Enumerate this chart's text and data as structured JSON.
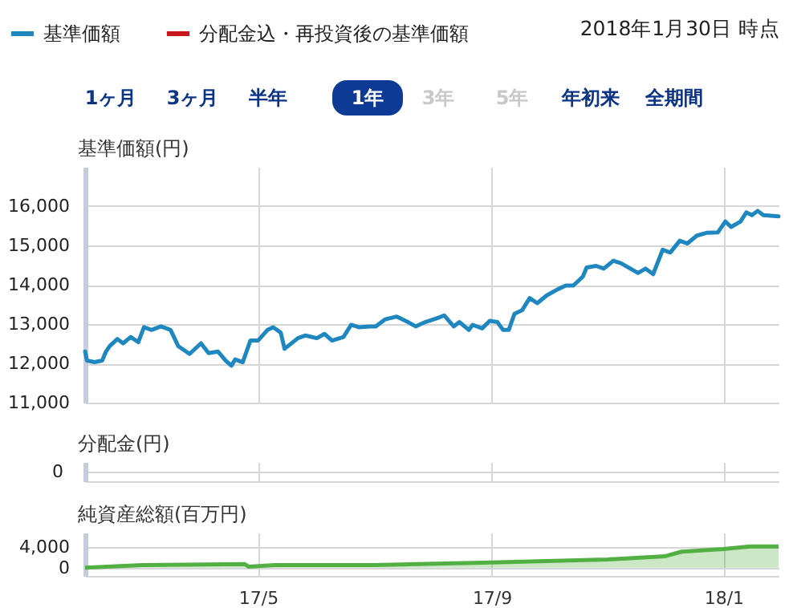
{
  "chart_data": [
    {
      "type": "line",
      "ylabel": "基準価額(円)",
      "legend": "top left",
      "grid": true,
      "tick_labels": "y",
      "annotations": [
        "2018年1月30日 時点",
        "1ヶ月",
        "3ヶ月",
        "半年",
        "1年",
        "3年",
        "5年",
        "年初来",
        "全期間"
      ],
      "xlim": [
        "2017-01-30",
        "2018-01-30"
      ],
      "xticks": [
        {
          "value": "2017-05-01",
          "label": null
        },
        {
          "value": "2017-09-01",
          "label": null
        },
        {
          "value": "2018-01-01",
          "label": null
        }
      ],
      "ylim": [
        11000,
        17000
      ],
      "yticks": [
        {
          "value": 11000,
          "label": "11,000"
        },
        {
          "value": 12000,
          "label": "12,000"
        },
        {
          "value": 13000,
          "label": "13,000"
        },
        {
          "value": 14000,
          "label": "14,000"
        },
        {
          "value": 15000,
          "label": "15,000"
        },
        {
          "value": 16000,
          "label": "16,000"
        }
      ],
      "series": [
        {
          "name": "基準価額",
          "color": "#1e87bf",
          "x": [
            "2017-01-30",
            "2017-01-31",
            "2017-02-04",
            "2017-02-08",
            "2017-02-10",
            "2017-02-12",
            "2017-02-16",
            "2017-02-19",
            "2017-02-23",
            "2017-02-27",
            "2017-03-02",
            "2017-03-06",
            "2017-03-11",
            "2017-03-16",
            "2017-03-20",
            "2017-03-26",
            "2017-04-01",
            "2017-04-05",
            "2017-04-10",
            "2017-04-14",
            "2017-04-17",
            "2017-04-19",
            "2017-04-23",
            "2017-04-27",
            "2017-05-01",
            "2017-05-06",
            "2017-05-09",
            "2017-05-13",
            "2017-05-15",
            "2017-05-22",
            "2017-05-26",
            "2017-06-01",
            "2017-06-05",
            "2017-06-09",
            "2017-06-15",
            "2017-06-19",
            "2017-06-23",
            "2017-06-29",
            "2017-07-02",
            "2017-07-07",
            "2017-07-13",
            "2017-07-19",
            "2017-07-23",
            "2017-07-28",
            "2017-08-04",
            "2017-08-07",
            "2017-08-12",
            "2017-08-15",
            "2017-08-20",
            "2017-08-22",
            "2017-08-27",
            "2017-08-31",
            "2017-09-04",
            "2017-09-07",
            "2017-09-10",
            "2017-09-13",
            "2017-09-17",
            "2017-09-21",
            "2017-09-25",
            "2017-09-30",
            "2017-10-06",
            "2017-10-10",
            "2017-10-14",
            "2017-10-19",
            "2017-10-21",
            "2017-10-26",
            "2017-10-30",
            "2017-11-04",
            "2017-11-08",
            "2017-11-13",
            "2017-11-17",
            "2017-11-21",
            "2017-11-25",
            "2017-11-30",
            "2017-12-04",
            "2017-12-09",
            "2017-12-13",
            "2017-12-18",
            "2017-12-23",
            "2017-12-29",
            "2018-01-02",
            "2018-01-05",
            "2018-01-10",
            "2018-01-13",
            "2018-01-16",
            "2018-01-19",
            "2018-01-22",
            "2018-01-30"
          ],
          "values": [
            12300,
            12070,
            12030,
            12070,
            12300,
            12440,
            12620,
            12510,
            12670,
            12540,
            12920,
            12850,
            12940,
            12850,
            12440,
            12240,
            12510,
            12260,
            12300,
            12070,
            11940,
            12100,
            12030,
            12580,
            12580,
            12850,
            12920,
            12780,
            12370,
            12640,
            12710,
            12640,
            12750,
            12580,
            12670,
            12980,
            12920,
            12940,
            12940,
            13120,
            13190,
            13050,
            12940,
            13050,
            13160,
            13220,
            12940,
            13050,
            12850,
            12980,
            12890,
            13080,
            13050,
            12850,
            12850,
            13260,
            13350,
            13660,
            13530,
            13730,
            13890,
            13980,
            13980,
            14210,
            14440,
            14480,
            14410,
            14610,
            14550,
            14410,
            14300,
            14410,
            14270,
            14890,
            14820,
            15120,
            15050,
            15250,
            15320,
            15330,
            15610,
            15470,
            15610,
            15840,
            15770,
            15880,
            15770,
            15740
          ]
        },
        {
          "name": "分配金込・再投資後の基準価額",
          "color": "#c8161d"
        }
      ]
    },
    {
      "type": "other",
      "ylabel": "分配金(円)",
      "annotations": [
        "0"
      ]
    },
    {
      "type": "area",
      "ylabel": "純資産総額(百万円)",
      "grid": true,
      "xlim": [
        "2017-01-30",
        "2018-01-30"
      ],
      "xticks": [
        {
          "value": "2017-05-01",
          "label": "17/5"
        },
        {
          "value": "2017-09-01",
          "label": "17/9"
        },
        {
          "value": "2018-01-01",
          "label": "18/1"
        }
      ],
      "ylim": [
        -1600,
        6800
      ],
      "yticks": [
        0,
        {
          "value": 4000,
          "label": "4,000"
        }
      ],
      "series": [
        {
          "color": "#52b043",
          "x": [
            "2017-01-30",
            "2017-03-01",
            "2017-04-24",
            "2017-04-26",
            "2017-05-10",
            "2017-07-01",
            "2017-09-01",
            "2017-11-01",
            "2017-12-01",
            "2017-12-10",
            "2018-01-01",
            "2018-01-15",
            "2018-01-30"
          ],
          "values": [
            0,
            500,
            700,
            200,
            500,
            500,
            1000,
            1600,
            2200,
            3100,
            3600,
            4100,
            4100
          ]
        }
      ]
    }
  ]
}
